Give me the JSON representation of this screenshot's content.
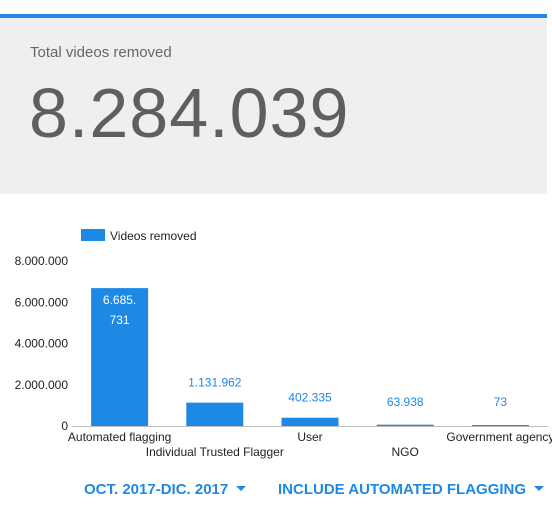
{
  "card": {
    "label": "Total videos removed",
    "value": "8.284.039"
  },
  "colors": {
    "accent": "#1e88e5",
    "bar": "#1e88e5",
    "card_bg": "#efefef",
    "value_text": "#5f5f5f"
  },
  "filters": {
    "period_label": "OCT. 2017-DIC. 2017",
    "flagging_label": "INCLUDE AUTOMATED FLAGGING"
  },
  "chart_data": {
    "type": "bar",
    "categories": [
      "Automated flagging",
      "Individual Trusted Flagger",
      "User",
      "NGO",
      "Government agency"
    ],
    "series": [
      {
        "name": "Videos removed",
        "values": [
          6685731,
          1131962,
          402335,
          63938,
          73
        ],
        "value_labels": [
          "6.685.731",
          "1.131.962",
          "402.335",
          "63.938",
          "73"
        ]
      }
    ],
    "y_ticks": [
      0,
      2000000,
      4000000,
      6000000,
      8000000
    ],
    "y_tick_labels": [
      "0",
      "2.000.000",
      "4.000.000",
      "6.000.000",
      "8.000.000"
    ],
    "ylim": [
      0,
      8000000
    ],
    "legend": "top-left",
    "grid": false,
    "title": "",
    "xlabel": "",
    "ylabel": ""
  }
}
